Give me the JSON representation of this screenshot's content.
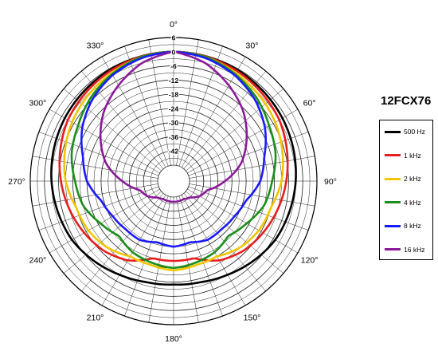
{
  "chart_data": {
    "type": "polar",
    "title": "12FCX76",
    "radial_unit": "dB",
    "radial_ticks": [
      6,
      0,
      -6,
      -12,
      -18,
      -24,
      -30,
      -36,
      -42
    ],
    "radial_tick_labels": [
      "6",
      "0",
      "-6",
      "-12",
      "-18",
      "-24",
      "-30",
      "-36",
      "-42"
    ],
    "radial_range": [
      -48,
      6
    ],
    "angle_ticks": [
      0,
      30,
      60,
      90,
      120,
      150,
      180,
      210,
      240,
      270,
      300,
      330
    ],
    "angle_tick_labels": [
      "0°",
      "30°",
      "60°",
      "90°",
      "120°",
      "150°",
      "180°",
      "210°",
      "240°",
      "270°",
      "300°",
      "330°"
    ],
    "grid": true,
    "legend_position": "right",
    "series_angles": [
      0,
      15,
      30,
      45,
      60,
      75,
      90,
      105,
      120,
      135,
      150,
      165,
      180
    ],
    "series": [
      {
        "name": "500 Hz",
        "color": "#000000",
        "values": [
          0,
          -0.2,
          -0.5,
          -1.0,
          -1.5,
          -2.2,
          -3.0,
          -4.0,
          -5.0,
          -7.0,
          -9.0,
          -10.5,
          -11.0
        ]
      },
      {
        "name": "1 kHz",
        "color": "#e81e1e",
        "values": [
          0,
          -0.3,
          -1.0,
          -2.0,
          -3.0,
          -5.0,
          -7.0,
          -9.0,
          -11.0,
          -13.0,
          -16.0,
          -21.0,
          -21.0
        ]
      },
      {
        "name": "2 kHz",
        "color": "#f2c500",
        "values": [
          0,
          -0.5,
          -2.0,
          -3.5,
          -5.0,
          -7.0,
          -9.0,
          -12.0,
          -13.0,
          -15.0,
          -18.0,
          -18.0,
          -17.0
        ]
      },
      {
        "name": "4 kHz",
        "color": "#1a8f1a",
        "values": [
          0,
          -0.5,
          -2.5,
          -5.0,
          -8.0,
          -10.0,
          -13.0,
          -15.0,
          -19.0,
          -22.0,
          -20.0,
          -19.0,
          -18.0
        ]
      },
      {
        "name": "8 kHz",
        "color": "#1a1aff",
        "values": [
          0,
          -1.0,
          -3.0,
          -6.0,
          -10.0,
          -15.0,
          -18.0,
          -23.0,
          -25.0,
          -26.0,
          -26.0,
          -28.0,
          -27.0
        ]
      },
      {
        "name": "16 kHz",
        "color": "#8b1a9a",
        "values": [
          0,
          -3.0,
          -8.0,
          -13.0,
          -19.0,
          -25.0,
          -33.0,
          -40.0,
          -42.0,
          -45.0,
          -46.0,
          -46.0,
          -46.0
        ]
      }
    ]
  }
}
